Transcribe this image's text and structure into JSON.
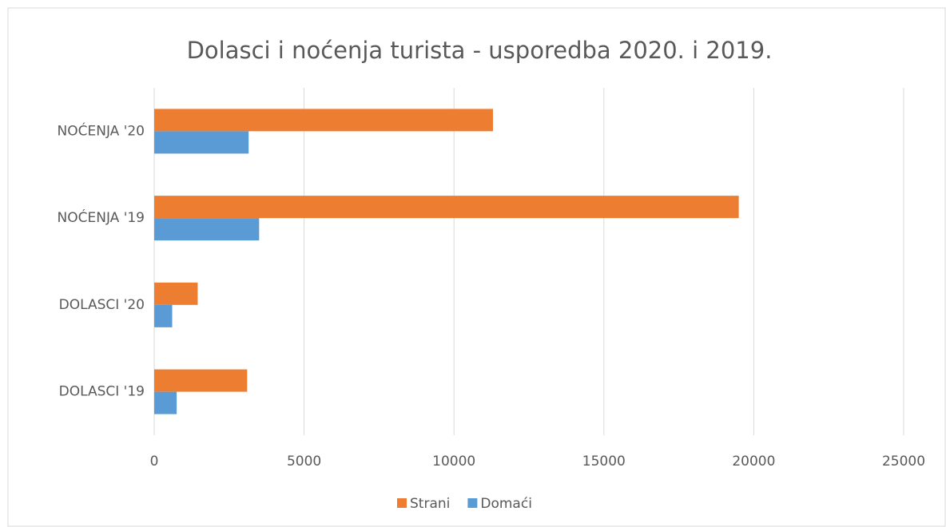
{
  "chart_data": {
    "type": "barh",
    "title": "Dolasci i noćenja turista - usporedba 2020. i 2019.",
    "categories": [
      "NOĆENJA '20",
      "NOĆENJA '19",
      "DOLASCI '20",
      "DOLASCI '19"
    ],
    "series": [
      {
        "name": "Strani",
        "color": "#ed7d31",
        "values": [
          11300,
          19500,
          1450,
          3100
        ]
      },
      {
        "name": "Domaći",
        "color": "#5b9bd5",
        "values": [
          3150,
          3500,
          600,
          750
        ]
      }
    ],
    "xlim": [
      0,
      25000
    ],
    "xticks": [
      0,
      5000,
      10000,
      15000,
      20000,
      25000
    ],
    "grid": true,
    "legend": "bottom"
  }
}
